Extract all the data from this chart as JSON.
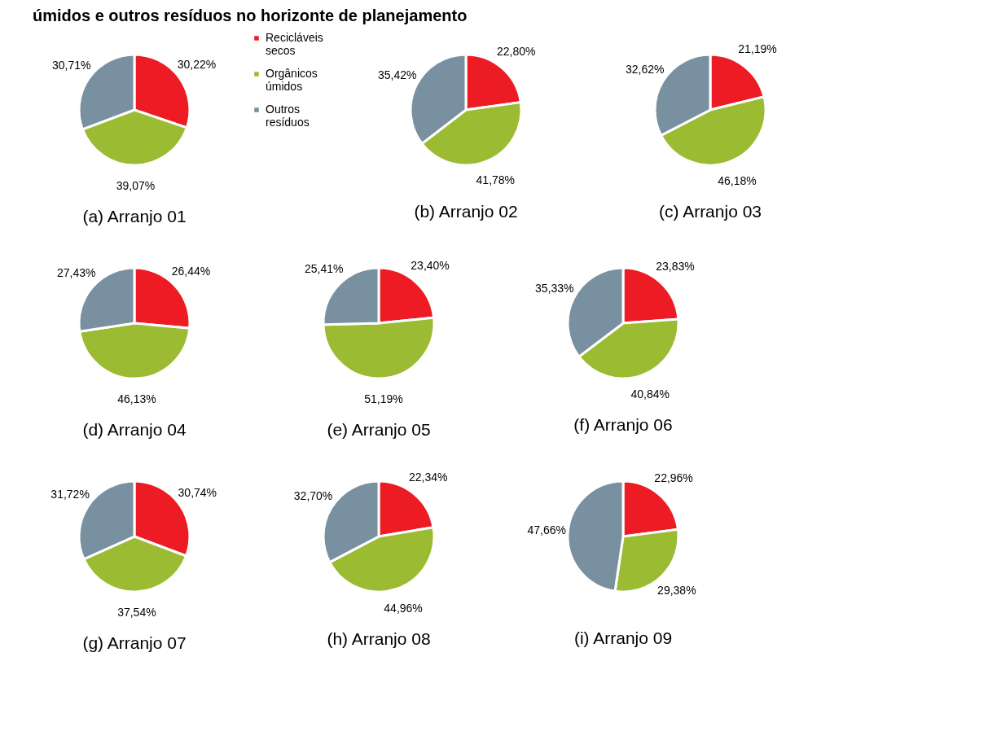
{
  "chart_data": [
    {
      "type": "pie",
      "title": "(a) Arranjo 01",
      "legend": "top right",
      "annotations": [
        "úmidos e outros resíduos no horizonte de planejamento"
      ],
      "categories": [
        "Recicláveis secos",
        "Orgânicos úmidos",
        "Outros resíduos"
      ],
      "values": [
        30.22,
        39.07,
        30.71
      ],
      "colors": [
        "#ed1c24",
        "#9bbb33",
        "#7890a0"
      ],
      "value_labels": [
        "30,22%",
        "39,07%",
        "30,71%"
      ]
    },
    {
      "type": "pie",
      "title": "(b) Arranjo 02",
      "categories": [
        null,
        null,
        null
      ],
      "values": [
        22.8,
        41.78,
        35.42
      ],
      "colors": [
        "#ed1c24",
        "#9bbb33",
        "#7890a0"
      ],
      "value_labels": [
        "22,80%",
        "41,78%",
        "35,42%"
      ]
    },
    {
      "type": "pie",
      "title": "(c) Arranjo 03",
      "categories": [
        null,
        null,
        null
      ],
      "values": [
        21.19,
        46.18,
        32.62
      ],
      "colors": [
        "#ed1c24",
        "#9bbb33",
        "#7890a0"
      ],
      "value_labels": [
        "21,19%",
        "46,18%",
        "32,62%"
      ]
    },
    {
      "type": "pie",
      "title": "(d) Arranjo 04",
      "categories": [
        null,
        null,
        null
      ],
      "values": [
        26.44,
        46.13,
        27.43
      ],
      "colors": [
        "#ed1c24",
        "#9bbb33",
        "#7890a0"
      ],
      "value_labels": [
        "26,44%",
        "46,13%",
        "27,43%"
      ]
    },
    {
      "type": "pie",
      "title": "(e) Arranjo 05",
      "categories": [
        null,
        null,
        null
      ],
      "values": [
        23.4,
        51.19,
        25.41
      ],
      "colors": [
        "#ed1c24",
        "#9bbb33",
        "#7890a0"
      ],
      "value_labels": [
        "23,40%",
        "51,19%",
        "25,41%"
      ]
    },
    {
      "type": "pie",
      "title": "(f) Arranjo 06",
      "categories": [
        null,
        null,
        null
      ],
      "values": [
        23.83,
        40.84,
        35.33
      ],
      "colors": [
        "#ed1c24",
        "#9bbb33",
        "#7890a0"
      ],
      "value_labels": [
        "23,83%",
        "40,84%",
        "35,33%"
      ]
    },
    {
      "type": "pie",
      "title": "(g) Arranjo 07",
      "categories": [
        null,
        null,
        null
      ],
      "values": [
        30.74,
        37.54,
        31.72
      ],
      "colors": [
        "#ed1c24",
        "#9bbb33",
        "#7890a0"
      ],
      "value_labels": [
        "30,74%",
        "37,54%",
        "31,72%"
      ]
    },
    {
      "type": "pie",
      "title": "(h) Arranjo 08",
      "categories": [
        null,
        null,
        null
      ],
      "values": [
        22.34,
        44.96,
        32.7
      ],
      "colors": [
        "#ed1c24",
        "#9bbb33",
        "#7890a0"
      ],
      "value_labels": [
        "22,34%",
        "44,96%",
        "32,70%"
      ]
    },
    {
      "type": "pie",
      "title": "(i) Arranjo 09",
      "categories": [
        null,
        null,
        null
      ],
      "values": [
        22.96,
        29.38,
        47.66
      ],
      "colors": [
        "#ed1c24",
        "#9bbb33",
        "#7890a0"
      ],
      "value_labels": [
        "22,96%",
        "29,38%",
        "47,66%"
      ]
    }
  ]
}
